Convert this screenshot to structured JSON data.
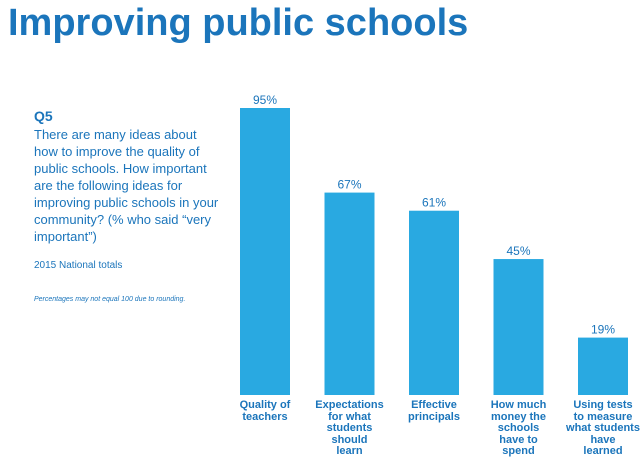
{
  "header": {
    "title": "Improving public schools"
  },
  "question": {
    "label": "Q5",
    "text": "There are many ideas about how to improve the quality of public schools. How important are the following ideas for improving public schools in your community? (% who said “very important”)",
    "totals": "2015 National totals",
    "footnote": "Percentages may not equal 100 due to rounding."
  },
  "colors": {
    "bar": "#29a9e1",
    "text": "#1b75bb"
  },
  "chart_data": {
    "type": "bar",
    "title": "",
    "xlabel": "",
    "ylabel": "",
    "ylim": [
      0,
      100
    ],
    "grid": false,
    "legend": "none",
    "categories": [
      "Quality of teachers",
      "Expectations for what students should learn",
      "Effective principals",
      "How much money the schools have to spend",
      "Using tests to measure what students have learned"
    ],
    "values": [
      95,
      67,
      61,
      45,
      19
    ],
    "value_labels": [
      "95%",
      "67%",
      "61%",
      "45%",
      "19%"
    ]
  }
}
